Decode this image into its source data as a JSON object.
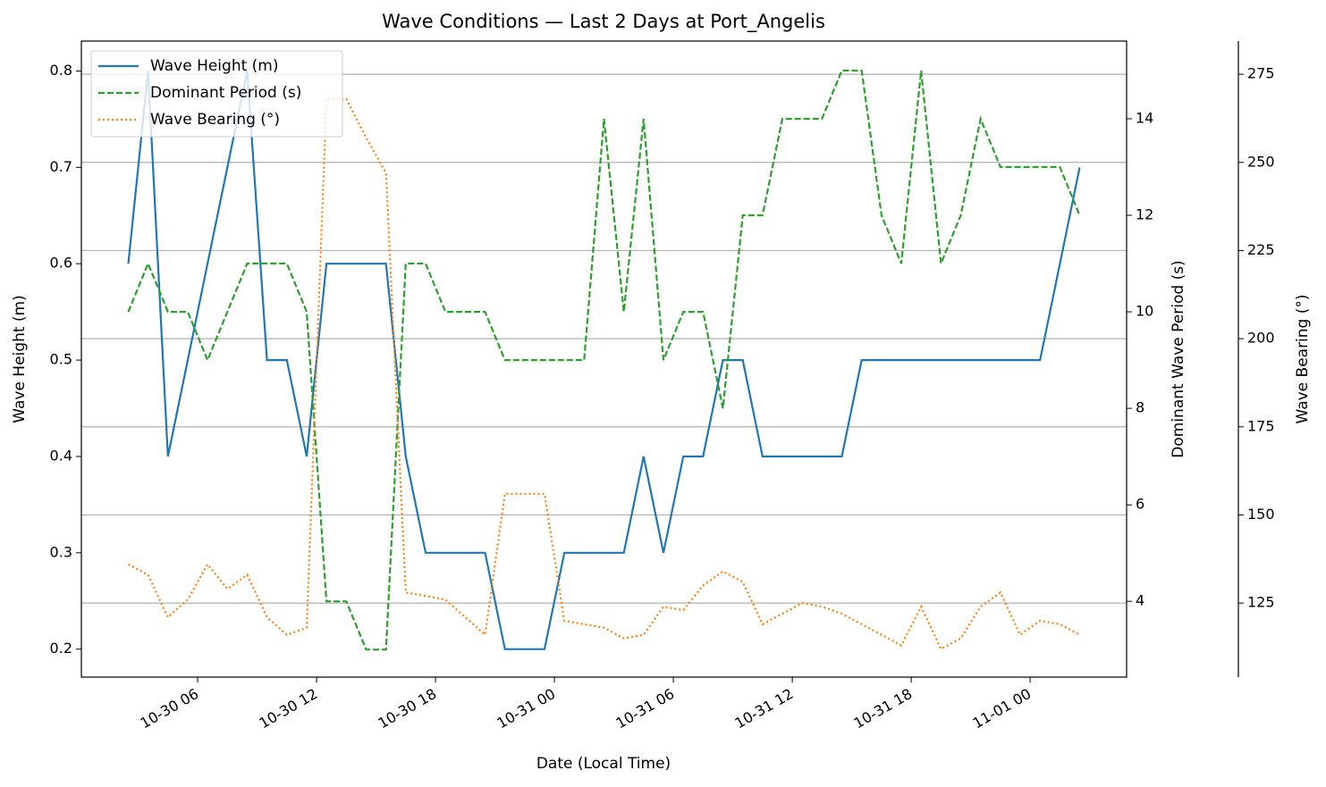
{
  "chart_data": {
    "type": "line",
    "title": "Wave Conditions — Last 2 Days at Port_Angelis",
    "xlabel": "Date (Local Time)",
    "ylabel": "Wave Height (m)",
    "y2label": "Dominant Wave Period (s)",
    "y3label": "Wave Bearing (°)",
    "x": [
      "10-30 02:30",
      "10-30 03:30",
      "10-30 04:30",
      "10-30 05:30",
      "10-30 06:30",
      "10-30 07:30",
      "10-30 08:30",
      "10-30 09:30",
      "10-30 10:30",
      "10-30 11:30",
      "10-30 12:30",
      "10-30 13:30",
      "10-30 14:30",
      "10-30 15:30",
      "10-30 16:30",
      "10-30 17:30",
      "10-30 18:30",
      "10-30 19:30",
      "10-30 20:30",
      "10-30 21:30",
      "10-30 22:30",
      "10-30 23:30",
      "10-31 00:30",
      "10-31 01:30",
      "10-31 02:30",
      "10-31 03:30",
      "10-31 04:30",
      "10-31 05:30",
      "10-31 06:30",
      "10-31 07:30",
      "10-31 08:30",
      "10-31 09:30",
      "10-31 10:30",
      "10-31 11:30",
      "10-31 12:30",
      "10-31 13:30",
      "10-31 14:30",
      "10-31 15:30",
      "10-31 16:30",
      "10-31 17:30",
      "10-31 18:30",
      "10-31 19:30",
      "10-31 20:30",
      "10-31 21:30",
      "10-31 22:30",
      "10-31 23:30",
      "11-01 00:30",
      "11-01 01:30",
      "11-01 02:30"
    ],
    "xlim": [
      "10-30 00:08",
      "11-01 04:52"
    ],
    "xticks": [
      "10-30 06",
      "10-30 12",
      "10-30 18",
      "10-31 00",
      "10-31 06",
      "10-31 12",
      "10-31 18",
      "11-01 00"
    ],
    "ylim": [
      0.171,
      0.831
    ],
    "yticks": [
      0.2,
      0.3,
      0.4,
      0.5,
      0.6,
      0.7,
      0.8
    ],
    "y2lim": [
      2.43,
      15.61
    ],
    "y2ticks": [
      4,
      6,
      8,
      10,
      12,
      14
    ],
    "y3lim": [
      104,
      284.4
    ],
    "y3ticks": [
      125,
      150,
      175,
      200,
      225,
      250,
      275
    ],
    "grid_axis": "y3",
    "legend": "upper left",
    "series": [
      {
        "name": "Wave Height (m)",
        "color": "#1f77b4",
        "style": "solid",
        "axis": "y",
        "values": [
          0.6,
          0.8,
          0.4,
          0.5,
          0.6,
          0.7,
          0.8,
          0.5,
          0.5,
          0.4,
          0.6,
          0.6,
          0.6,
          0.6,
          0.4,
          0.3,
          0.3,
          0.3,
          0.3,
          0.2,
          0.2,
          0.2,
          0.3,
          0.3,
          0.3,
          0.3,
          0.4,
          0.3,
          0.4,
          0.4,
          0.5,
          0.5,
          0.4,
          0.4,
          0.4,
          0.4,
          0.4,
          0.5,
          0.5,
          0.5,
          0.5,
          0.5,
          0.5,
          0.5,
          0.5,
          0.5,
          0.5,
          0.6,
          0.7
        ]
      },
      {
        "name": "Dominant Period (s)",
        "color": "#2ca02c",
        "style": "dashed",
        "axis": "y2",
        "values": [
          10,
          11,
          10,
          10,
          9,
          10,
          11,
          11,
          11,
          10,
          4,
          4,
          3,
          3,
          11,
          11,
          10,
          10,
          10,
          9,
          9,
          9,
          9,
          9,
          14,
          10,
          14,
          9,
          10,
          10,
          8,
          12,
          12,
          14,
          14,
          14,
          15,
          15,
          12,
          11,
          15,
          11,
          12,
          14,
          13,
          13,
          13,
          13,
          12
        ]
      },
      {
        "name": "Wave Bearing (°)",
        "color": "#ff7f0e",
        "style": "dotted",
        "axis": "y3",
        "values": [
          136,
          133,
          121,
          126,
          136,
          129,
          133,
          121,
          116,
          118,
          268,
          268,
          257,
          247,
          128,
          127,
          126,
          121,
          116,
          156,
          156,
          156,
          120,
          119,
          118,
          115,
          116,
          124,
          123,
          130,
          134,
          131,
          119,
          122,
          125,
          124,
          122,
          119,
          116,
          113,
          124,
          112,
          115,
          124,
          128,
          116,
          120,
          119,
          116
        ]
      }
    ]
  }
}
